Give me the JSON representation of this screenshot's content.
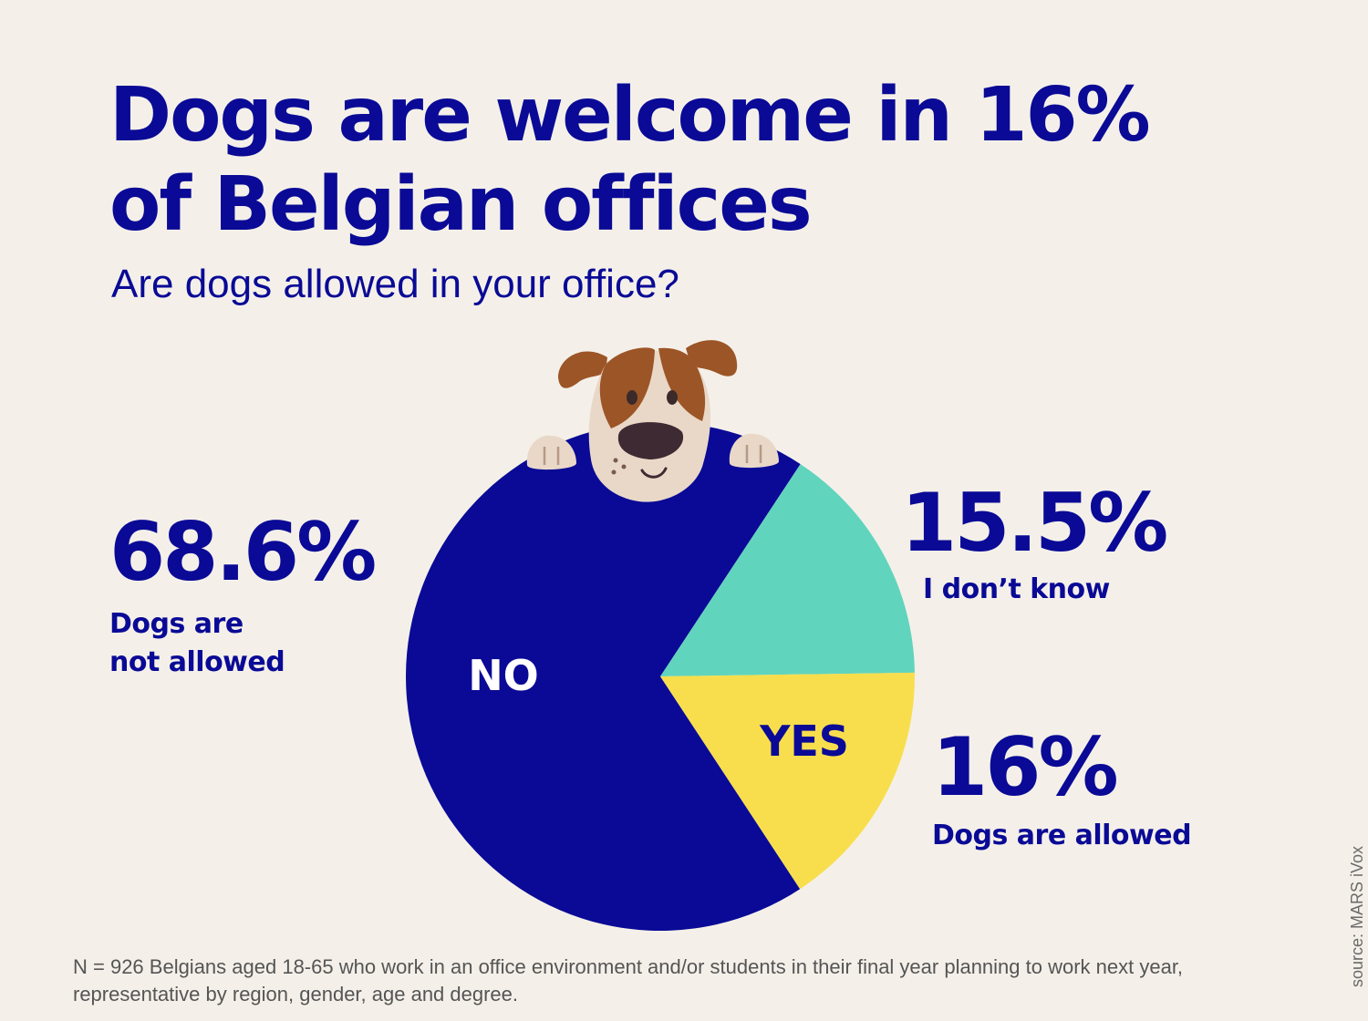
{
  "header": {
    "title_line1": "Dogs are welcome in 16%",
    "title_line2": "of Belgian offices",
    "subtitle": "Are dogs allowed in your office?"
  },
  "chart_data": {
    "type": "pie",
    "title": "Dogs are welcome in 16% of Belgian offices",
    "subtitle": "Are dogs allowed in your office?",
    "slices": [
      {
        "label": "NO",
        "value": 68.6,
        "value_label": "68.6%",
        "description": "Dogs are not allowed",
        "color": "#0A0A96"
      },
      {
        "label": "",
        "value": 15.5,
        "value_label": "15.5%",
        "description": "I don’t know",
        "color": "#61D4BD"
      },
      {
        "label": "YES",
        "value": 16,
        "value_label": "16%",
        "description": "Dogs are allowed",
        "color": "#F8DE4D"
      }
    ]
  },
  "callouts": {
    "no": {
      "value": "68.6%",
      "line1": "Dogs are",
      "line2": "not allowed"
    },
    "dont_know": {
      "value": "15.5%",
      "label": "I don’t know"
    },
    "yes": {
      "value": "16%",
      "label": "Dogs are allowed"
    }
  },
  "slice_labels": {
    "no": "NO",
    "yes": "YES"
  },
  "footnote": {
    "line1": "N = 926 Belgians aged 18-65 who work in an office environment and/or students in their final year planning to work next year,",
    "line2": "representative by region, gender, age and degree."
  },
  "source": "source: MARS iVox",
  "illustration": {
    "icon": "dog-peeking-icon"
  },
  "colors": {
    "background": "#F4F0E9",
    "text": "#0A0A96",
    "no": "#0A0A96",
    "dont_know": "#61D4BD",
    "yes": "#F8DE4D"
  }
}
